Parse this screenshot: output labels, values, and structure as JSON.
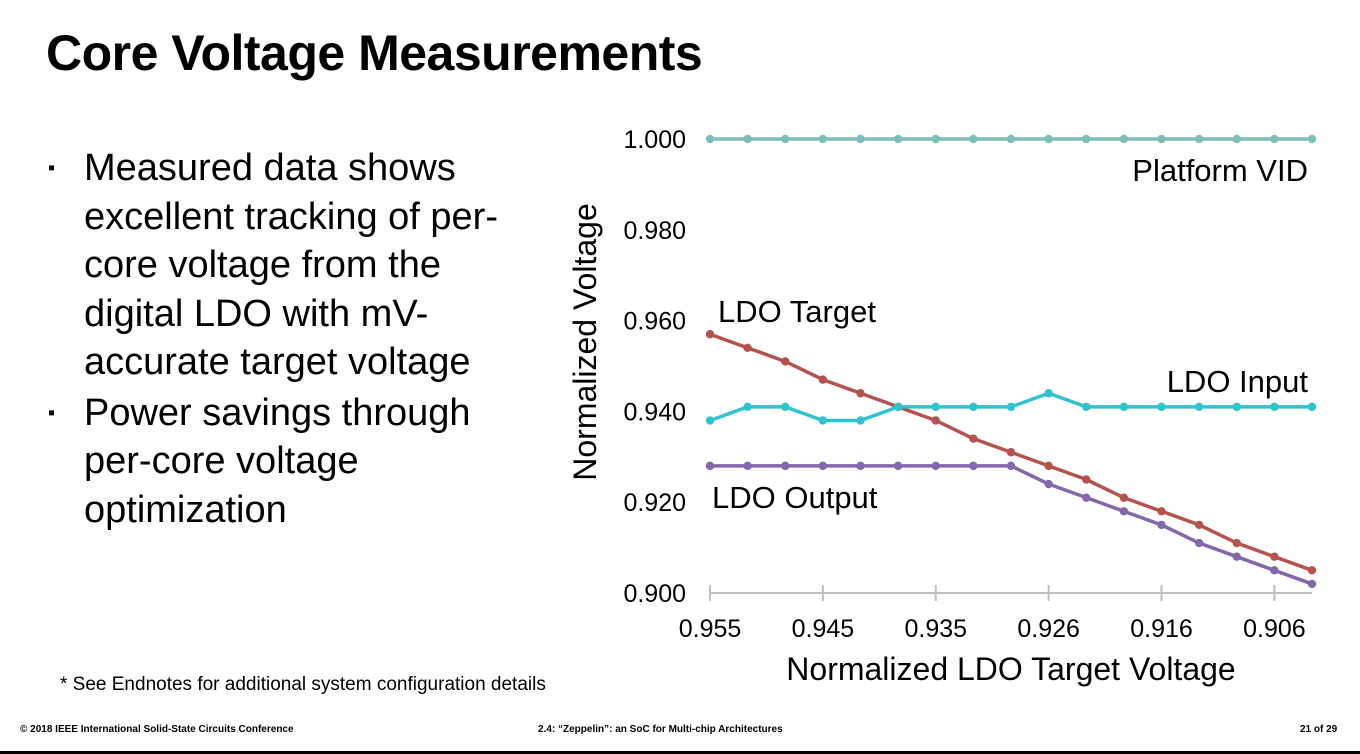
{
  "slide": {
    "title": "Core Voltage Measurements",
    "bullets": [
      "Measured data shows excellent tracking of per-core voltage from the digital LDO with mV-accurate target voltage",
      "Power savings through per-core voltage optimization"
    ],
    "bullet_marker": "▪",
    "endnote": "* See Endnotes for additional system configuration details",
    "footer": {
      "left": "© 2018 IEEE International Solid-State Circuits Conference",
      "center": "2.4: “Zeppelin”: an SoC for Multi-chip Architectures",
      "right": "21 of 29"
    }
  },
  "chart_data": {
    "type": "line",
    "title": "",
    "xlabel": "Normalized LDO Target Voltage",
    "ylabel": "Normalized Voltage",
    "x_tick_labels": [
      "0.955",
      "0.945",
      "0.935",
      "0.926",
      "0.916",
      "0.906"
    ],
    "y_tick_labels": [
      "1.000",
      "0.980",
      "0.960",
      "0.940",
      "0.920",
      "0.900"
    ],
    "ylim": [
      0.9,
      1.0
    ],
    "x": [
      0.955,
      0.952,
      0.948,
      0.945,
      0.942,
      0.938,
      0.935,
      0.932,
      0.929,
      0.926,
      0.923,
      0.919,
      0.916,
      0.913,
      0.91,
      0.906,
      0.903
    ],
    "x_reversed": true,
    "grid": false,
    "legend": "none (direct labels)",
    "series": [
      {
        "name": "Platform VID",
        "color": "#7dbfb8",
        "values": [
          1.0,
          1.0,
          1.0,
          1.0,
          1.0,
          1.0,
          1.0,
          1.0,
          1.0,
          1.0,
          1.0,
          1.0,
          1.0,
          1.0,
          1.0,
          1.0,
          1.0
        ]
      },
      {
        "name": "LDO Target",
        "color": "#b5524e",
        "values": [
          0.957,
          0.954,
          0.951,
          0.947,
          0.944,
          0.941,
          0.938,
          0.934,
          0.931,
          0.928,
          0.925,
          0.921,
          0.918,
          0.915,
          0.911,
          0.908,
          0.905
        ]
      },
      {
        "name": "LDO Input",
        "color": "#2fc3d2",
        "values": [
          0.938,
          0.941,
          0.941,
          0.938,
          0.938,
          0.941,
          0.941,
          0.941,
          0.941,
          0.944,
          0.941,
          0.941,
          0.941,
          0.941,
          0.941,
          0.941,
          0.941
        ]
      },
      {
        "name": "LDO Output",
        "color": "#8466aa",
        "values": [
          0.928,
          0.928,
          0.928,
          0.928,
          0.928,
          0.928,
          0.928,
          0.928,
          0.928,
          0.924,
          0.921,
          0.918,
          0.915,
          0.911,
          0.908,
          0.905,
          0.902
        ]
      }
    ]
  }
}
